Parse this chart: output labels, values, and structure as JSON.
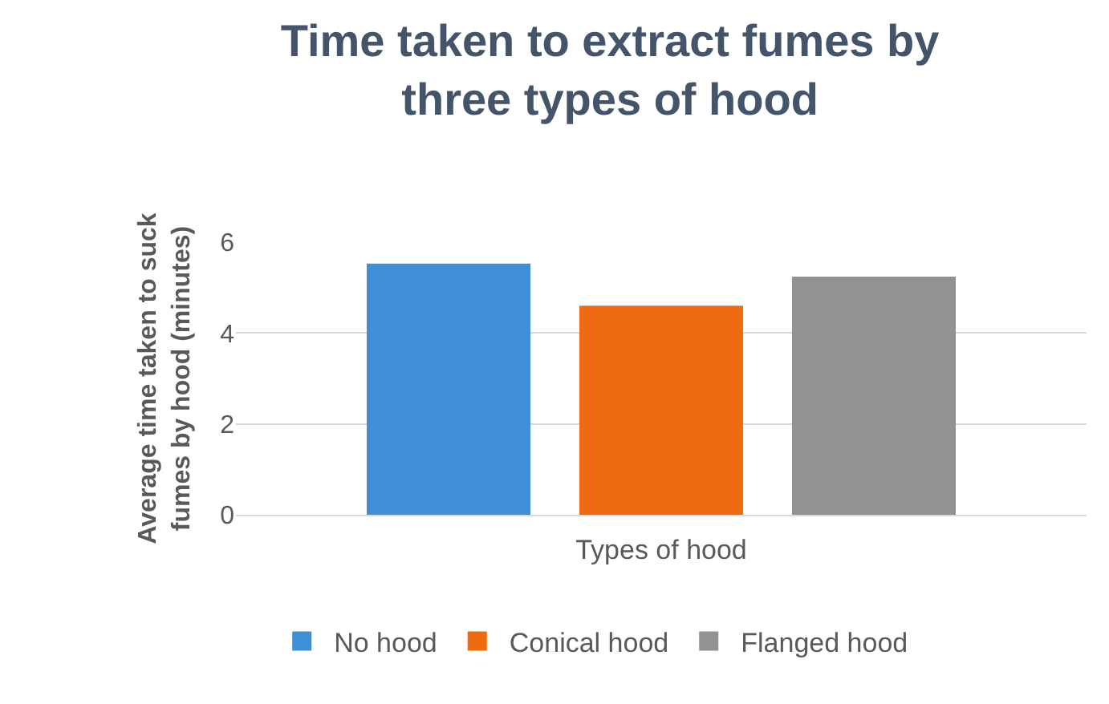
{
  "chart_data": {
    "type": "bar",
    "title": "Time taken to extract fumes by three types of hood",
    "xlabel": "Types of hood",
    "ylabel": "Average time taken to suck fumes by hood (minutes)",
    "categories": [
      null
    ],
    "series": [
      {
        "name": "No hood",
        "color": "#3f8fd8",
        "values": [
          5.53
        ]
      },
      {
        "name": "Conical hood",
        "color": "#ee6b12",
        "values": [
          4.6
        ]
      },
      {
        "name": "Flanged hood",
        "color": "#929292",
        "values": [
          5.24
        ]
      }
    ],
    "ylim": [
      0,
      6
    ],
    "yticks": [
      0,
      2,
      4,
      6
    ],
    "grid": "y",
    "legend": "bottom"
  }
}
